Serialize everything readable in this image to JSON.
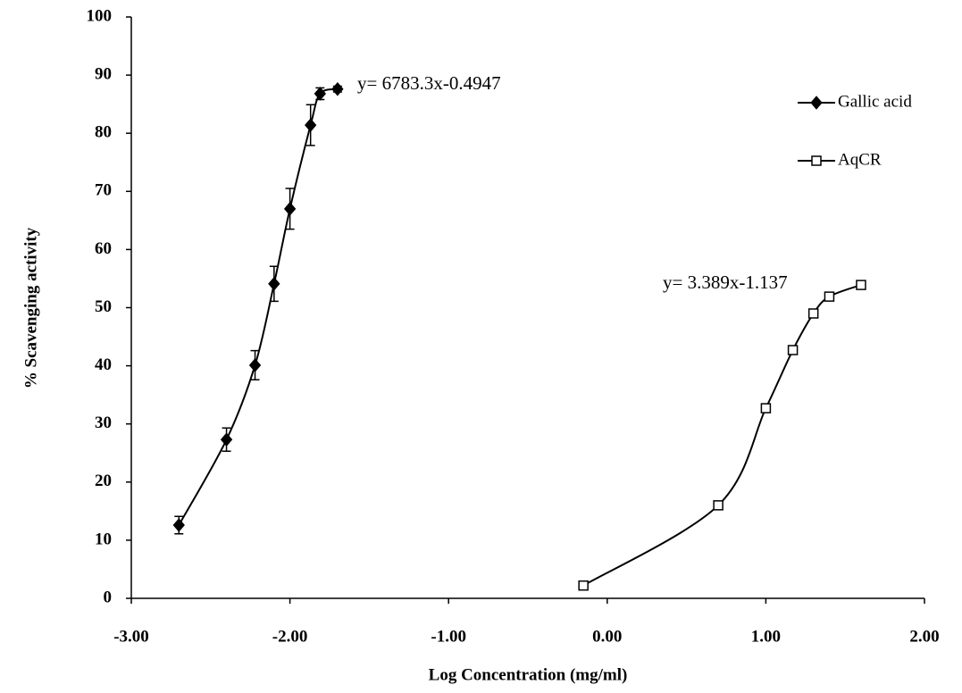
{
  "chart_data": {
    "type": "line",
    "xlabel": "Log Concentration (mg/ml)",
    "ylabel": "% Scavenging activity",
    "xlim": [
      -3,
      2
    ],
    "xticks": [
      {
        "value": -3,
        "label": "-3.00"
      },
      {
        "value": -2,
        "label": "-2.00"
      },
      {
        "value": -1,
        "label": "-1.00"
      },
      {
        "value": 0,
        "label": "0.00"
      },
      {
        "value": 1,
        "label": "1.00"
      },
      {
        "value": 2,
        "label": "2.00"
      }
    ],
    "ylim": [
      0,
      100
    ],
    "yticks": [
      0,
      10,
      20,
      30,
      40,
      50,
      60,
      70,
      80,
      90,
      100
    ],
    "grid": false,
    "legend": "right",
    "series": [
      {
        "name": "Gallic acid",
        "color": "#000000",
        "marker": "diamond",
        "x": [
          -2.7,
          -2.4,
          -2.22,
          -2.1,
          -2.0,
          -1.87,
          -1.81,
          -1.7
        ],
        "values": [
          12.6,
          27.3,
          40.1,
          54.1,
          67.0,
          81.4,
          86.8,
          87.6
        ],
        "errors": [
          1.5,
          2.0,
          2.5,
          3.0,
          3.5,
          3.5,
          1.0,
          0.5
        ]
      },
      {
        "name": "AqCR",
        "color": "#000000",
        "marker": "square",
        "x": [
          -0.15,
          0.7,
          1.0,
          1.17,
          1.3,
          1.4,
          1.6
        ],
        "values": [
          2.2,
          16.0,
          32.7,
          42.7,
          49.0,
          51.9,
          53.9
        ],
        "errors": [
          0.5,
          0.5,
          0.7,
          0.6,
          0.6,
          0.5,
          0.4
        ]
      }
    ],
    "annotations": [
      "y= 6783.3x-0.4947",
      "y= 3.389x-1.137"
    ]
  }
}
